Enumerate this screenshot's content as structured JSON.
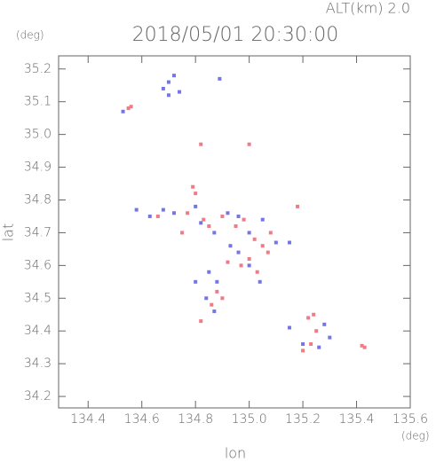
{
  "chart_data": {
    "type": "scatter",
    "title": "2018/05/01 20:30:00",
    "subtitle": "ALT(km) 2.0",
    "y_unit": "(deg)",
    "x_unit": "(deg)",
    "xlabel": "lon",
    "ylabel": "lat",
    "xlim": [
      134.29,
      135.6
    ],
    "ylim": [
      34.165,
      35.24
    ],
    "xticks": [
      134.4,
      134.6,
      134.8,
      {
        "value": 135,
        "label": "135.0"
      },
      135.2,
      135.4,
      135.6
    ],
    "yticks": [
      34.2,
      34.3,
      34.4,
      34.5,
      34.6,
      34.7,
      34.8,
      34.9,
      {
        "value": 35,
        "label": "35.0"
      },
      35.1,
      35.2
    ],
    "grid": false,
    "series": [
      {
        "color": "#f07a85",
        "x": [
          134.55,
          134.56,
          134.82,
          135.0,
          134.79,
          134.8,
          134.77,
          134.83,
          134.85,
          134.9,
          134.95,
          135.02,
          135.05,
          135.07,
          135.0,
          134.97,
          135.03,
          134.92,
          134.88,
          134.9,
          134.86,
          134.82,
          135.18,
          135.22,
          135.24,
          135.25,
          135.23,
          135.2,
          135.42,
          135.43,
          134.66,
          134.75,
          134.98,
          135.08
        ],
        "values": [
          35.08,
          35.085,
          34.97,
          34.97,
          34.84,
          34.82,
          34.76,
          34.74,
          34.72,
          34.75,
          34.72,
          34.68,
          34.66,
          34.64,
          34.62,
          34.6,
          34.58,
          34.61,
          34.52,
          34.5,
          34.48,
          34.43,
          34.78,
          34.44,
          34.45,
          34.4,
          34.36,
          34.34,
          34.355,
          34.35,
          34.75,
          34.7,
          34.74,
          34.7
        ]
      },
      {
        "color": "#7575e6",
        "x": [
          134.68,
          134.7,
          134.72,
          134.74,
          134.7,
          134.53,
          134.58,
          134.63,
          134.68,
          134.72,
          134.8,
          134.82,
          134.87,
          134.92,
          134.96,
          135.0,
          135.05,
          135.1,
          134.93,
          134.96,
          135.0,
          134.85,
          134.88,
          134.8,
          134.84,
          134.87,
          135.15,
          135.2,
          135.28,
          135.3,
          135.26,
          135.04,
          134.89,
          135.15
        ],
        "values": [
          35.14,
          35.16,
          35.18,
          35.13,
          35.12,
          35.07,
          34.77,
          34.75,
          34.77,
          34.76,
          34.78,
          34.73,
          34.7,
          34.76,
          34.75,
          34.7,
          34.74,
          34.67,
          34.66,
          34.64,
          34.6,
          34.58,
          34.55,
          34.55,
          34.5,
          34.46,
          34.41,
          34.36,
          34.42,
          34.38,
          34.35,
          34.55,
          35.17,
          34.67
        ]
      }
    ]
  }
}
